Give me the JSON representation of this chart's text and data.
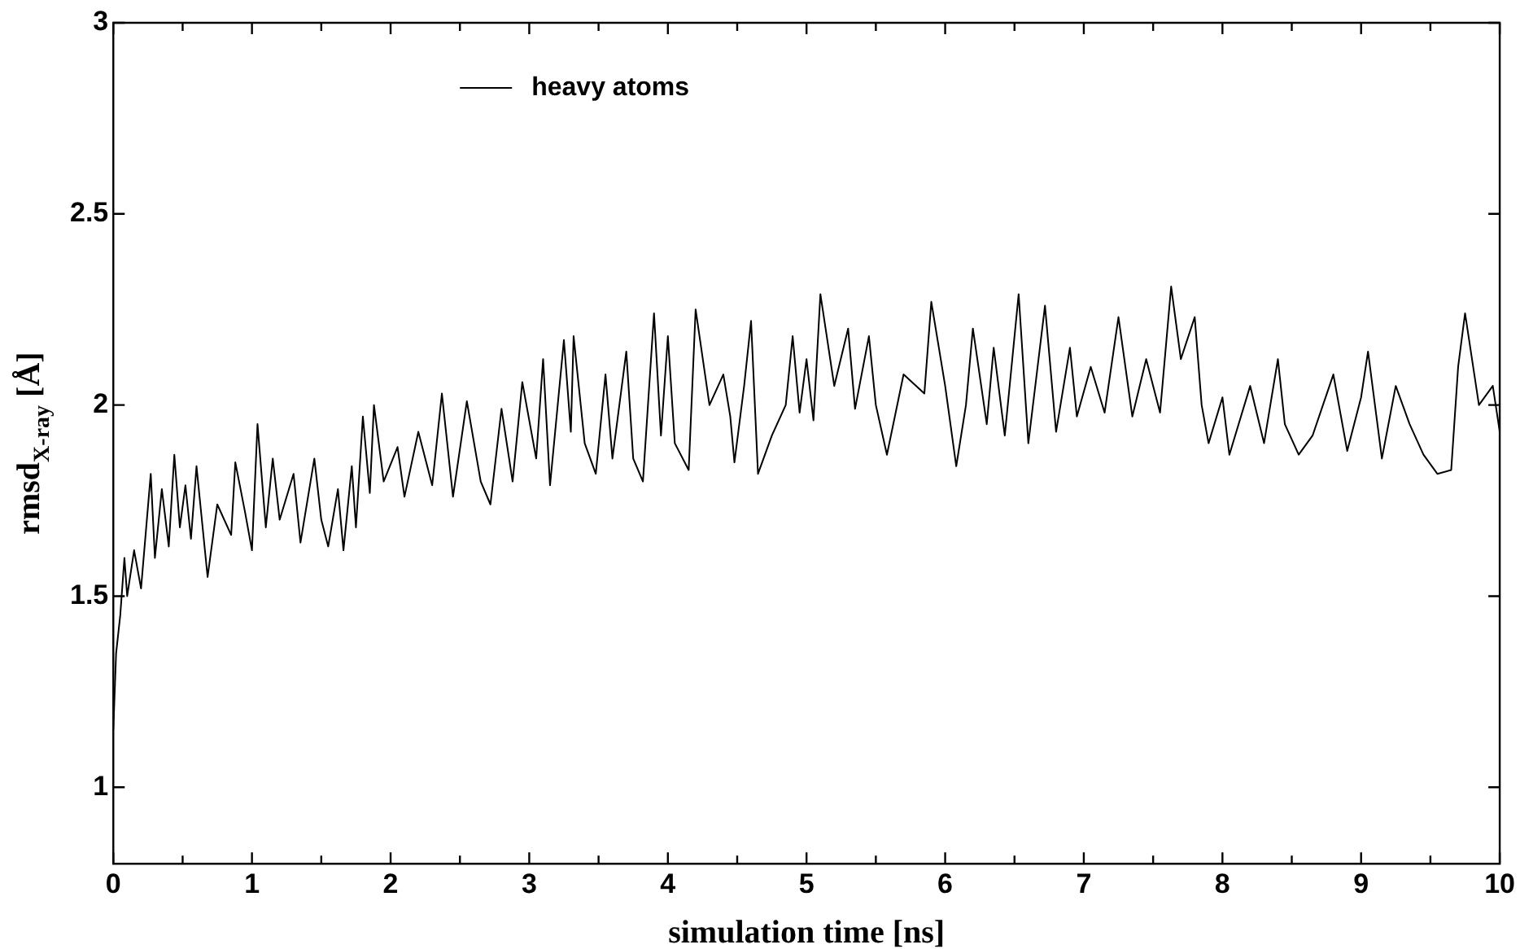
{
  "chart_data": {
    "type": "line",
    "xlabel": "simulation time [ns]",
    "ylabel": "rmsd$_{X-ray}$ [Å]",
    "xlim": [
      0,
      10
    ],
    "ylim": [
      0.8,
      3
    ],
    "xticks": [
      0,
      {
        "value": 0.5,
        "label": null
      },
      1,
      {
        "value": 1.5,
        "label": null
      },
      2,
      {
        "value": 2.5,
        "label": null
      },
      3,
      {
        "value": 3.5,
        "label": null
      },
      4,
      {
        "value": 4.5,
        "label": null
      },
      5,
      {
        "value": 5.5,
        "label": null
      },
      6,
      {
        "value": 6.5,
        "label": null
      },
      7,
      {
        "value": 7.5,
        "label": null
      },
      8,
      {
        "value": 8.5,
        "label": null
      },
      9,
      {
        "value": 9.5,
        "label": null
      },
      10
    ],
    "yticks": [
      1,
      1.5,
      2,
      2.5,
      3
    ],
    "grid": false,
    "legend": "top left",
    "marker": "none",
    "line_style": "solid",
    "series": [
      {
        "name": "heavy atoms",
        "color": "#000000",
        "x": [
          0,
          0.02,
          0.05,
          0.08,
          0.1,
          0.15,
          0.2,
          0.27,
          0.3,
          0.35,
          0.4,
          0.44,
          0.48,
          0.52,
          0.56,
          0.6,
          0.68,
          0.75,
          0.85,
          0.88,
          0.95,
          1.0,
          1.04,
          1.1,
          1.15,
          1.2,
          1.3,
          1.35,
          1.45,
          1.5,
          1.55,
          1.62,
          1.66,
          1.72,
          1.75,
          1.8,
          1.85,
          1.88,
          1.95,
          2.05,
          2.1,
          2.2,
          2.3,
          2.37,
          2.45,
          2.55,
          2.65,
          2.72,
          2.8,
          2.88,
          2.95,
          3.05,
          3.1,
          3.15,
          3.25,
          3.3,
          3.32,
          3.4,
          3.48,
          3.55,
          3.6,
          3.7,
          3.75,
          3.82,
          3.9,
          3.95,
          4.0,
          4.05,
          4.15,
          4.2,
          4.3,
          4.4,
          4.45,
          4.48,
          4.55,
          4.6,
          4.65,
          4.75,
          4.85,
          4.9,
          4.95,
          5.0,
          5.05,
          5.1,
          5.2,
          5.3,
          5.35,
          5.45,
          5.5,
          5.58,
          5.7,
          5.85,
          5.9,
          6.0,
          6.08,
          6.15,
          6.2,
          6.3,
          6.35,
          6.43,
          6.53,
          6.6,
          6.72,
          6.8,
          6.9,
          6.95,
          7.05,
          7.15,
          7.25,
          7.35,
          7.45,
          7.5,
          7.55,
          7.63,
          7.7,
          7.8,
          7.85,
          7.9,
          8.0,
          8.05,
          8.2,
          8.3,
          8.4,
          8.45,
          8.55,
          8.65,
          8.8,
          8.9,
          9.0,
          9.05,
          9.15,
          9.25,
          9.35,
          9.45,
          9.55,
          9.65,
          9.7,
          9.75,
          9.85,
          9.95,
          10
        ],
        "values": [
          1.15,
          1.35,
          1.45,
          1.6,
          1.5,
          1.62,
          1.52,
          1.82,
          1.6,
          1.78,
          1.63,
          1.87,
          1.68,
          1.79,
          1.65,
          1.84,
          1.55,
          1.74,
          1.66,
          1.85,
          1.72,
          1.62,
          1.95,
          1.68,
          1.86,
          1.7,
          1.82,
          1.64,
          1.86,
          1.7,
          1.63,
          1.78,
          1.62,
          1.84,
          1.68,
          1.97,
          1.77,
          2.0,
          1.8,
          1.89,
          1.76,
          1.93,
          1.79,
          2.03,
          1.76,
          2.01,
          1.8,
          1.74,
          1.99,
          1.8,
          2.06,
          1.86,
          2.12,
          1.79,
          2.17,
          1.93,
          2.18,
          1.9,
          1.82,
          2.08,
          1.86,
          2.14,
          1.86,
          1.8,
          2.24,
          1.92,
          2.18,
          1.9,
          1.83,
          2.25,
          2.0,
          2.08,
          1.97,
          1.85,
          2.05,
          2.22,
          1.82,
          1.92,
          2.0,
          2.18,
          1.98,
          2.12,
          1.96,
          2.29,
          2.05,
          2.2,
          1.99,
          2.18,
          2.0,
          1.87,
          2.08,
          2.03,
          2.27,
          2.05,
          1.84,
          2.0,
          2.2,
          1.95,
          2.15,
          1.92,
          2.29,
          1.9,
          2.26,
          1.93,
          2.15,
          1.97,
          2.1,
          1.98,
          2.23,
          1.97,
          2.12,
          2.05,
          1.98,
          2.31,
          2.12,
          2.23,
          2.0,
          1.9,
          2.02,
          1.87,
          2.05,
          1.9,
          2.12,
          1.95,
          1.87,
          1.92,
          2.08,
          1.88,
          2.02,
          2.14,
          1.86,
          2.05,
          1.95,
          1.87,
          1.82,
          1.83,
          2.1,
          2.24,
          2.0,
          2.05,
          1.93
        ]
      }
    ]
  }
}
